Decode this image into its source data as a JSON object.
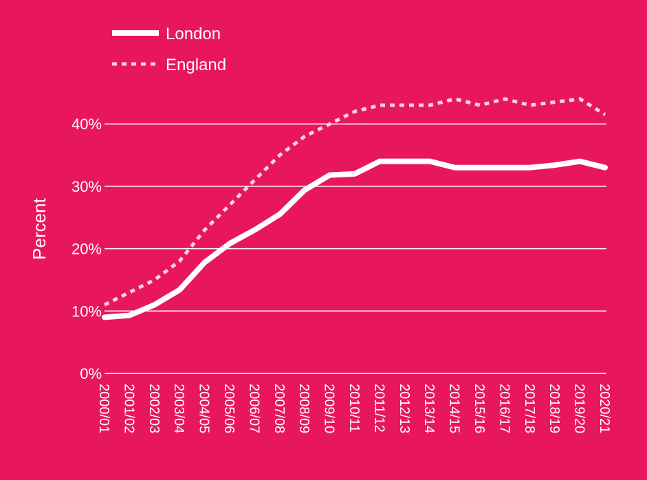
{
  "colors": {
    "background": "#e8175d",
    "foreground": "#ffffff",
    "england_line": "#ffd3e4"
  },
  "chart_data": {
    "type": "line",
    "title": "",
    "xlabel": "",
    "ylabel": "Percent",
    "ylim": [
      0,
      45
    ],
    "yticks": [
      0,
      10,
      20,
      30,
      40
    ],
    "ytick_labels": [
      "0%",
      "10%",
      "20%",
      "30%",
      "40%"
    ],
    "grid": true,
    "legend_position": "top-left",
    "categories": [
      "2000/01",
      "2001/02",
      "2002/03",
      "2003/04",
      "2004/05",
      "2005/06",
      "2006/07",
      "2007/08",
      "2008/09",
      "2009/10",
      "2010/11",
      "2011/12",
      "2012/13",
      "2013/14",
      "2014/15",
      "2015/16",
      "2016/17",
      "2017/18",
      "2018/19",
      "2019/20",
      "2020/21"
    ],
    "series": [
      {
        "name": "London",
        "style": "solid",
        "values": [
          9.0,
          9.3,
          11.0,
          13.4,
          17.8,
          20.8,
          23.0,
          25.5,
          29.4,
          31.8,
          32.0,
          34.0,
          34.0,
          34.0,
          33.0,
          33.0,
          33.0,
          33.0,
          33.4,
          34.0,
          33.0
        ]
      },
      {
        "name": "England",
        "style": "dotted",
        "values": [
          11.0,
          13.0,
          15.0,
          18.0,
          23.0,
          27.0,
          31.0,
          35.0,
          38.0,
          40.0,
          42.0,
          43.0,
          43.0,
          43.0,
          44.0,
          43.0,
          44.0,
          43.0,
          43.5,
          44.0,
          41.5
        ]
      }
    ]
  }
}
